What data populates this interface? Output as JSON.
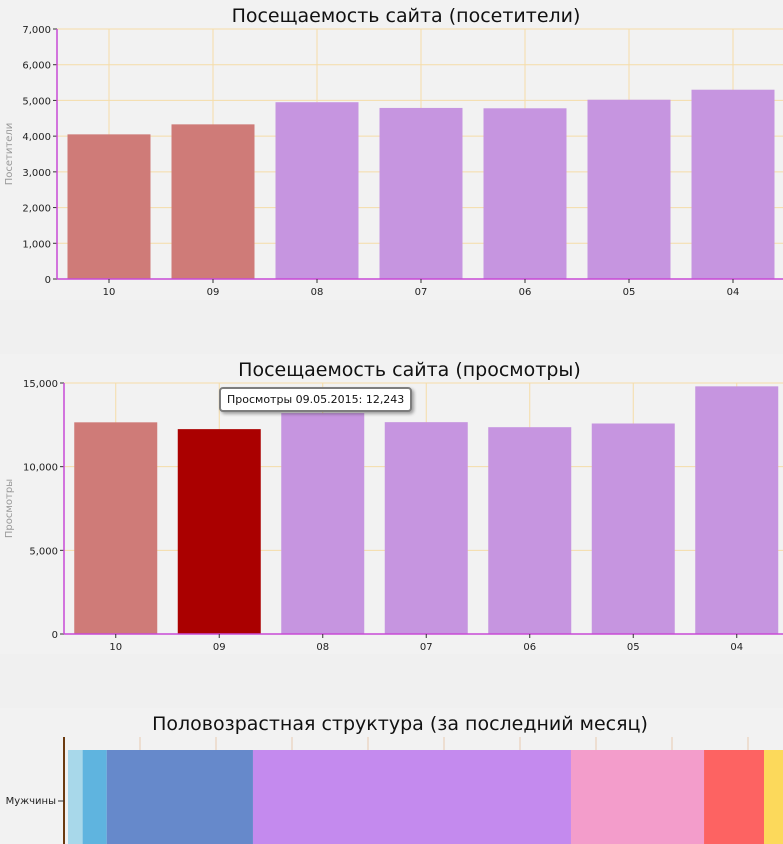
{
  "chart_data": [
    {
      "type": "bar",
      "title": "Посещаемость сайта (посетители)",
      "ylabel": "Посетители",
      "categories": [
        "10",
        "09",
        "08",
        "07",
        "06",
        "05",
        "04"
      ],
      "values": [
        4050,
        4330,
        4950,
        4790,
        4780,
        5020,
        5300
      ],
      "ylim": [
        0,
        7000
      ],
      "yticks": [
        "0",
        "1,000",
        "2,000",
        "3,000",
        "4,000",
        "5,000",
        "6,000",
        "7,000"
      ],
      "ytick_values": [
        0,
        1000,
        2000,
        3000,
        4000,
        5000,
        6000,
        7000
      ],
      "grid": true,
      "highlight_indices": [
        0,
        1
      ],
      "colors": {
        "bar": "#c695e0",
        "highlight": "#cf7b78",
        "grid": "#f5dca8",
        "axis": "#c84bd6"
      }
    },
    {
      "type": "bar",
      "title": "Посещаемость сайта (просмотры)",
      "ylabel": "Просмотры",
      "categories": [
        "10",
        "09",
        "08",
        "07",
        "06",
        "05",
        "04"
      ],
      "values": [
        12650,
        12243,
        13200,
        12660,
        12360,
        12580,
        14800
      ],
      "ylim": [
        0,
        15000
      ],
      "yticks": [
        "0",
        "5,000",
        "10,000",
        "15,000"
      ],
      "ytick_values": [
        0,
        5000,
        10000,
        15000
      ],
      "grid": true,
      "highlight_indices": [
        0
      ],
      "hover_index": 1,
      "tooltip": "Просмотры 09.05.2015: 12,243",
      "colors": {
        "bar": "#c695e0",
        "highlight": "#cf7b78",
        "hover": "#aa0000",
        "grid": "#f5dca8",
        "axis": "#c84bd6"
      }
    },
    {
      "type": "bar",
      "orientation": "horizontal-stacked",
      "title": "Половозрастная структура (за последний месяц)",
      "categories": [
        "Мужчины"
      ],
      "segments": [
        {
          "value": 2.0,
          "color": "#a8d8ea"
        },
        {
          "value": 3.3,
          "color": "#5fb4df"
        },
        {
          "value": 20.0,
          "color": "#6689cb"
        },
        {
          "value": 43.5,
          "color": "#c48aee"
        },
        {
          "value": 18.2,
          "color": "#f39dcb"
        },
        {
          "value": 8.2,
          "color": "#fd6362"
        },
        {
          "value": 2.6,
          "color": "#fcd95b"
        }
      ],
      "colors": {
        "axis": "#6b3a10",
        "grid": "#e8c9b0"
      }
    }
  ]
}
